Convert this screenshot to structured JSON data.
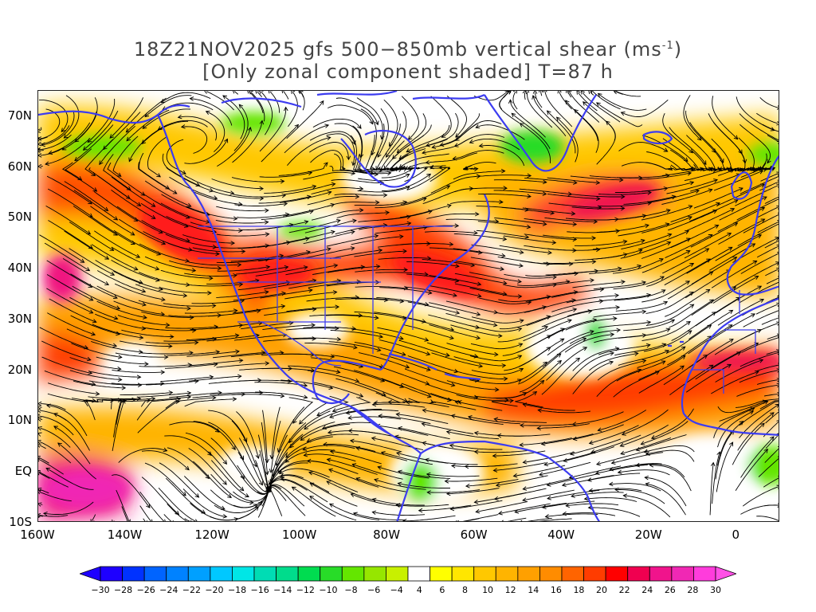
{
  "title": {
    "line1": "18Z21NOV2025 gfs 500−850mb vertical shear (ms",
    "line1_sup": "-1",
    "line1_end": ")",
    "line2": "[Only zonal component shaded] T=87 h"
  },
  "map": {
    "lon_range": [
      -160,
      10
    ],
    "lat_range": [
      -10,
      75
    ],
    "lat_ticks": [
      {
        "value": 70,
        "label": "70N"
      },
      {
        "value": 60,
        "label": "60N"
      },
      {
        "value": 50,
        "label": "50N"
      },
      {
        "value": 40,
        "label": "40N"
      },
      {
        "value": 30,
        "label": "30N"
      },
      {
        "value": 20,
        "label": "20N"
      },
      {
        "value": 10,
        "label": "10N"
      },
      {
        "value": 0,
        "label": "EQ"
      },
      {
        "value": -10,
        "label": "10S"
      }
    ],
    "lon_ticks": [
      {
        "value": -160,
        "label": "160W"
      },
      {
        "value": -140,
        "label": "140W"
      },
      {
        "value": -120,
        "label": "120W"
      },
      {
        "value": -100,
        "label": "100W"
      },
      {
        "value": -80,
        "label": "80W"
      },
      {
        "value": -60,
        "label": "60W"
      },
      {
        "value": -40,
        "label": "40W"
      },
      {
        "value": -20,
        "label": "20W"
      },
      {
        "value": 0,
        "label": "0"
      }
    ],
    "coastline_color": "#3c3cf0",
    "streamline_color": "#000000"
  },
  "colorbar": {
    "labels": [
      "−30",
      "−28",
      "−26",
      "−24",
      "−22",
      "−20",
      "−18",
      "−16",
      "−14",
      "−12",
      "−10",
      "−8",
      "−6",
      "−4",
      "4",
      "6",
      "8",
      "10",
      "12",
      "14",
      "16",
      "18",
      "20",
      "22",
      "24",
      "26",
      "28",
      "30"
    ],
    "colors": [
      "#1e00ff",
      "#0032ff",
      "#0064ff",
      "#0082ff",
      "#00a0ff",
      "#00c8ff",
      "#00e6e6",
      "#00dcb4",
      "#00dc8c",
      "#00dc50",
      "#28dc28",
      "#64e600",
      "#96e600",
      "#c8f000",
      "#ffffff",
      "#ffff00",
      "#ffe600",
      "#ffc800",
      "#ffb400",
      "#ffa000",
      "#ff8c00",
      "#ff6400",
      "#ff3c00",
      "#ff0000",
      "#f00050",
      "#f0148c",
      "#f028b4",
      "#ff3cdc"
    ],
    "under_color": "#1e00ff",
    "over_color": "#ff50e6"
  },
  "shading_regions": [
    {
      "name": "subtropical-jet-pacific",
      "band": "orange"
    },
    {
      "name": "north-pacific-jet",
      "band": "red"
    },
    {
      "name": "atlantic-jet",
      "band": "red"
    },
    {
      "name": "tropical-atlantic-jet",
      "band": "red"
    },
    {
      "name": "equatorial-pacific",
      "band": "magenta"
    },
    {
      "name": "arctic-easterlies",
      "band": "green"
    }
  ]
}
